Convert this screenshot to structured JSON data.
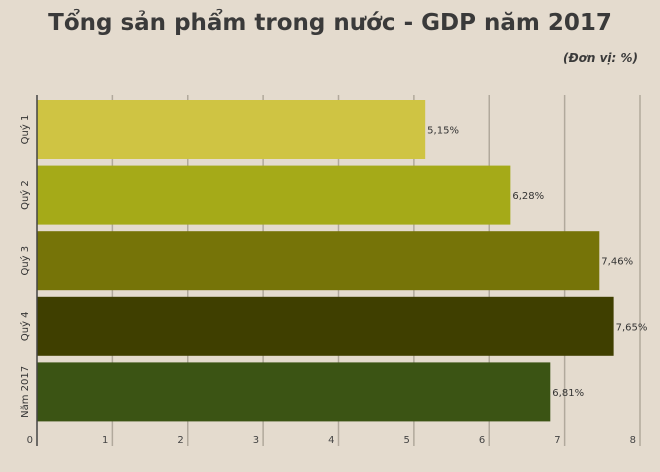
{
  "chart_data": {
    "type": "bar",
    "orientation": "horizontal",
    "title": "Tổng sản phẩm trong nước - GDP năm 2017",
    "unit_label": "(Đơn vị: %)",
    "categories": [
      "Quý 1",
      "Quý 2",
      "Quý 3",
      "Quý 4",
      "Năm 2017"
    ],
    "values": [
      5.15,
      6.28,
      7.46,
      7.65,
      6.81
    ],
    "data_labels": [
      "5,15%",
      "6,28%",
      "7,46%",
      "7,65%",
      "6,81%"
    ],
    "bar_colors": [
      "#cfc443",
      "#a5aa18",
      "#767408",
      "#3f3f00",
      "#3b5414"
    ],
    "xlim": [
      0,
      8
    ],
    "x_ticks": [
      "0",
      "1",
      "2",
      "3",
      "4",
      "5",
      "6",
      "7",
      "8"
    ],
    "grid": true,
    "legend": "none"
  }
}
